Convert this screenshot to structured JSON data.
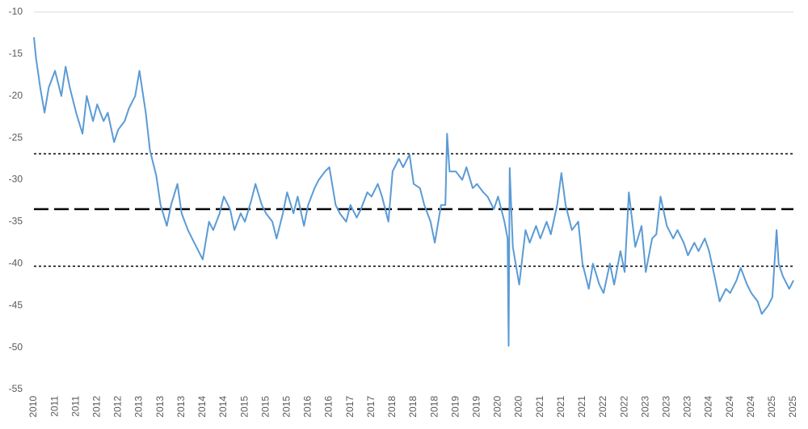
{
  "chart_data": {
    "type": "line",
    "xlim": [
      0,
      36
    ],
    "xticks": [
      {
        "value": 0,
        "label": "2010"
      },
      {
        "value": 1,
        "label": "2011"
      },
      {
        "value": 2,
        "label": "2011"
      },
      {
        "value": 3,
        "label": "2012"
      },
      {
        "value": 4,
        "label": "2012"
      },
      {
        "value": 5,
        "label": "2013"
      },
      {
        "value": 6,
        "label": "2013"
      },
      {
        "value": 7,
        "label": "2013"
      },
      {
        "value": 8,
        "label": "2014"
      },
      {
        "value": 9,
        "label": "2014"
      },
      {
        "value": 10,
        "label": "2015"
      },
      {
        "value": 11,
        "label": "2015"
      },
      {
        "value": 12,
        "label": "2015"
      },
      {
        "value": 13,
        "label": "2016"
      },
      {
        "value": 14,
        "label": "2016"
      },
      {
        "value": 15,
        "label": "2017"
      },
      {
        "value": 16,
        "label": "2017"
      },
      {
        "value": 17,
        "label": "2018"
      },
      {
        "value": 18,
        "label": "2018"
      },
      {
        "value": 19,
        "label": "2018"
      },
      {
        "value": 20,
        "label": "2019"
      },
      {
        "value": 21,
        "label": "2019"
      },
      {
        "value": 22,
        "label": "2020"
      },
      {
        "value": 23,
        "label": "2020"
      },
      {
        "value": 24,
        "label": "2021"
      },
      {
        "value": 25,
        "label": "2021"
      },
      {
        "value": 26,
        "label": "2021"
      },
      {
        "value": 27,
        "label": "2022"
      },
      {
        "value": 28,
        "label": "2022"
      },
      {
        "value": 29,
        "label": "2023"
      },
      {
        "value": 30,
        "label": "2023"
      },
      {
        "value": 31,
        "label": "2023"
      },
      {
        "value": 32,
        "label": "2024"
      },
      {
        "value": 33,
        "label": "2024"
      },
      {
        "value": 34,
        "label": "2024"
      },
      {
        "value": 35,
        "label": "2025"
      },
      {
        "value": 36,
        "label": "2025"
      }
    ],
    "ylim": [
      -55,
      -10
    ],
    "yticks": [
      -55,
      -50,
      -45,
      -40,
      -35,
      -30,
      -25,
      -20,
      -15,
      -10
    ],
    "top_rule": true,
    "hlines": [
      {
        "value": -26.9,
        "style": "dotted"
      },
      {
        "value": -33.5,
        "style": "dashed"
      },
      {
        "value": -40.3,
        "style": "dotted"
      }
    ],
    "series": [
      {
        "color": "#5b9bd5",
        "x": [
          0,
          0.1,
          0.3,
          0.5,
          0.7,
          1,
          1.3,
          1.5,
          1.7,
          2,
          2.3,
          2.5,
          2.8,
          3,
          3.3,
          3.5,
          3.8,
          4,
          4.3,
          4.5,
          4.8,
          5,
          5.3,
          5.5,
          5.8,
          6,
          6.3,
          6.5,
          6.8,
          7,
          7.3,
          7.6,
          8,
          8.3,
          8.5,
          8.8,
          9,
          9.3,
          9.5,
          9.8,
          10,
          10.3,
          10.5,
          10.8,
          11,
          11.3,
          11.5,
          11.8,
          12,
          12.3,
          12.5,
          12.8,
          13,
          13.3,
          13.5,
          13.8,
          14,
          14.3,
          14.5,
          14.8,
          15,
          15.3,
          15.5,
          15.8,
          16,
          16.3,
          16.5,
          16.8,
          17,
          17.3,
          17.5,
          17.8,
          18,
          18.3,
          18.5,
          18.8,
          19,
          19.3,
          19.5,
          19.58,
          19.7,
          20,
          20.3,
          20.5,
          20.8,
          21,
          21.3,
          21.5,
          21.8,
          22,
          22.3,
          22.45,
          22.5,
          22.55,
          22.7,
          23,
          23.3,
          23.5,
          23.8,
          24,
          24.3,
          24.5,
          24.8,
          25,
          25.2,
          25.5,
          25.8,
          26,
          26.3,
          26.5,
          26.8,
          27,
          27.3,
          27.5,
          27.8,
          28,
          28.2,
          28.5,
          28.8,
          29,
          29.3,
          29.5,
          29.7,
          30,
          30.3,
          30.5,
          30.8,
          31,
          31.3,
          31.5,
          31.8,
          32,
          32.3,
          32.5,
          32.8,
          33,
          33.3,
          33.5,
          33.8,
          34,
          34.3,
          34.5,
          34.8,
          35,
          35.2,
          35.3,
          35.5,
          35.8,
          36
        ],
        "values": [
          -13,
          -15.5,
          -19,
          -22,
          -19,
          -17,
          -20,
          -16.5,
          -19,
          -22,
          -24.5,
          -20,
          -23,
          -21,
          -23,
          -22,
          -25.5,
          -24,
          -23,
          -21.5,
          -20,
          -17,
          -22,
          -26.5,
          -29.5,
          -33,
          -35.5,
          -33,
          -30.5,
          -34,
          -36,
          -37.5,
          -39.5,
          -35,
          -36,
          -34,
          -32,
          -33.5,
          -36,
          -34,
          -35,
          -32.5,
          -30.5,
          -33,
          -34,
          -35,
          -37,
          -34,
          -31.5,
          -34,
          -32,
          -35.5,
          -33,
          -31,
          -30,
          -29,
          -28.5,
          -33,
          -34,
          -35,
          -33,
          -34.5,
          -33.5,
          -31.5,
          -32,
          -30.5,
          -32,
          -35,
          -29,
          -27.5,
          -28.5,
          -27,
          -30.5,
          -31,
          -33,
          -35,
          -37.5,
          -33,
          -33,
          -24.5,
          -29,
          -29,
          -30,
          -28.5,
          -31,
          -30.5,
          -31.5,
          -32,
          -33.5,
          -32,
          -35,
          -37,
          -49.8,
          -28.6,
          -38,
          -42.5,
          -36,
          -37.5,
          -35.5,
          -37,
          -35,
          -36.5,
          -33,
          -29.2,
          -33,
          -36,
          -35,
          -40,
          -43,
          -40,
          -42.5,
          -43.5,
          -40,
          -42.5,
          -38.5,
          -41,
          -31.5,
          -38,
          -35.5,
          -41,
          -37,
          -36.5,
          -32,
          -35.5,
          -37,
          -36,
          -37.5,
          -39,
          -37.5,
          -38.5,
          -37,
          -38.5,
          -42,
          -44.5,
          -43,
          -43.5,
          -42,
          -40.5,
          -42.5,
          -43.5,
          -44.5,
          -46,
          -45,
          -44,
          -36,
          -40,
          -41.5,
          -43,
          -42
        ]
      }
    ]
  }
}
